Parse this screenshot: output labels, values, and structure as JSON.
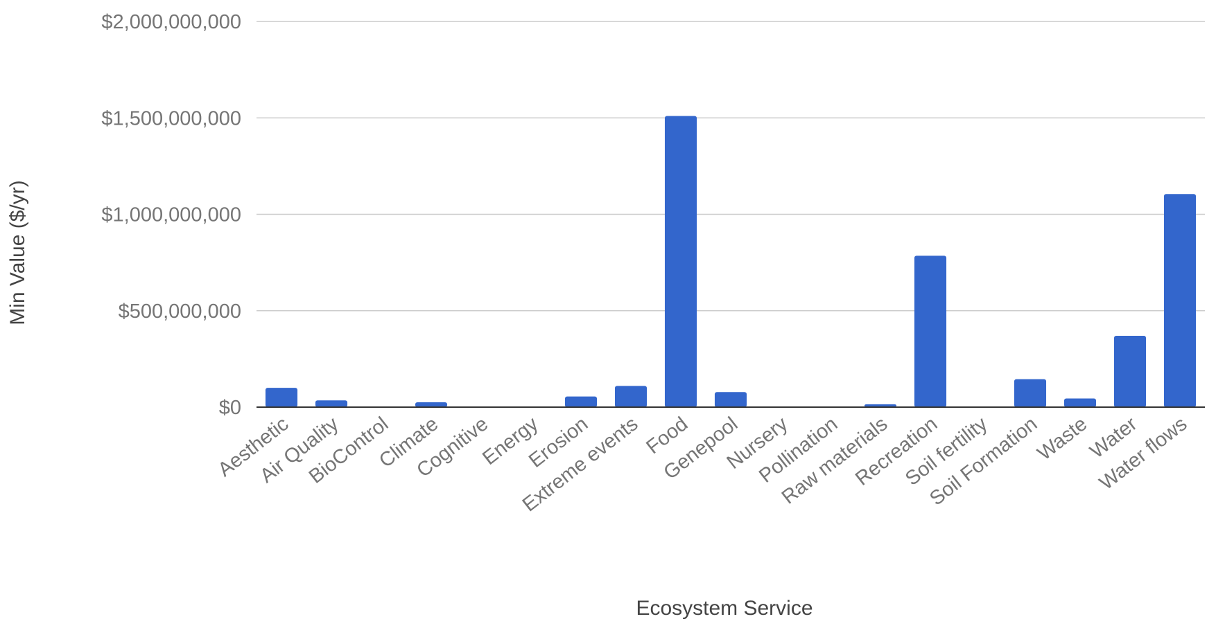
{
  "chart_data": {
    "type": "bar",
    "title": "",
    "xlabel": "Ecosystem Service",
    "ylabel": "Min Value ($/yr)",
    "ylim": [
      0,
      2000000000
    ],
    "yticks": [
      0,
      500000000,
      1000000000,
      1500000000,
      2000000000
    ],
    "ytick_labels": [
      "$0",
      "$500,000,000",
      "$1,000,000,000",
      "$1,500,000,000",
      "$2,000,000,000"
    ],
    "grid": true,
    "legend": "none",
    "categories": [
      "Aesthetic",
      "Air Quality",
      "BioControl",
      "Climate",
      "Cognitive",
      "Energy",
      "Erosion",
      "Extreme events",
      "Food",
      "Genepool",
      "Nursery",
      "Pollination",
      "Raw materials",
      "Recreation",
      "Soil fertility",
      "Soil Formation",
      "Waste",
      "Water",
      "Water flows"
    ],
    "series": [
      {
        "values": [
          100000000,
          35000000,
          0,
          25000000,
          0,
          0,
          55000000,
          110000000,
          1510000000,
          78000000,
          0,
          0,
          15000000,
          785000000,
          0,
          145000000,
          45000000,
          370000000,
          1105000000
        ]
      }
    ],
    "colors": {
      "bar": "#3366cc",
      "grid": "#cccccc",
      "axis": "#333333"
    }
  }
}
